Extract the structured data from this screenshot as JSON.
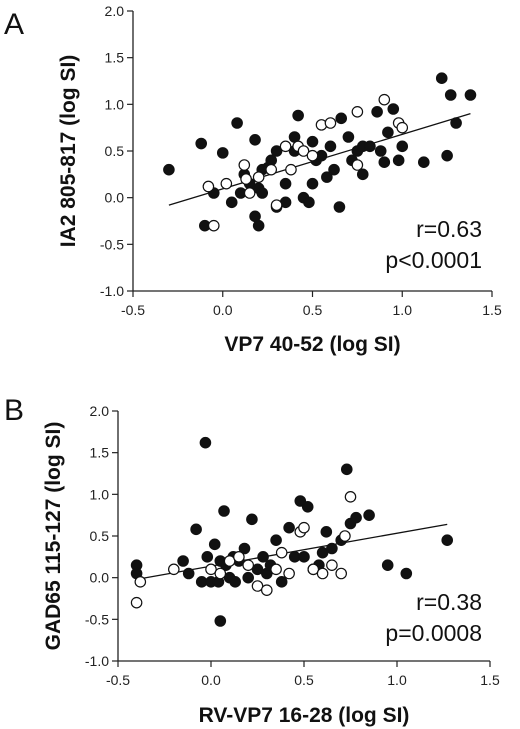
{
  "chart_data": [
    {
      "type": "scatter",
      "panel_label": "A",
      "xlabel": "VP7 40-52 (log SI)",
      "ylabel": "IA2 805-817  (log SI)",
      "xlim": [
        -0.5,
        1.5
      ],
      "ylim": [
        -1.0,
        2.0
      ],
      "x_ticks": [
        "-0.5",
        "0.0",
        "0.5",
        "1.0",
        "1.5"
      ],
      "y_ticks": [
        "-1.0",
        "-0.5",
        "0.0",
        "0.5",
        "1.0",
        "1.5",
        "2.0"
      ],
      "annotations": [
        "r=0.63",
        "p<0.0001"
      ],
      "regression_line": {
        "x": [
          -0.3,
          1.38
        ],
        "y": [
          -0.08,
          0.9
        ]
      },
      "series": [
        {
          "marker": "filled",
          "points": [
            [
              -0.3,
              0.3
            ],
            [
              -0.12,
              0.58
            ],
            [
              -0.1,
              -0.3
            ],
            [
              -0.05,
              0.05
            ],
            [
              0.0,
              0.48
            ],
            [
              0.05,
              -0.05
            ],
            [
              0.08,
              0.8
            ],
            [
              0.1,
              0.05
            ],
            [
              0.12,
              0.25
            ],
            [
              0.15,
              0.15
            ],
            [
              0.18,
              -0.2
            ],
            [
              0.18,
              0.62
            ],
            [
              0.2,
              -0.3
            ],
            [
              0.2,
              0.1
            ],
            [
              0.22,
              0.05
            ],
            [
              0.22,
              0.3
            ],
            [
              0.25,
              0.32
            ],
            [
              0.27,
              0.4
            ],
            [
              0.3,
              -0.1
            ],
            [
              0.3,
              0.5
            ],
            [
              0.35,
              0.15
            ],
            [
              0.35,
              -0.05
            ],
            [
              0.4,
              0.65
            ],
            [
              0.4,
              0.5
            ],
            [
              0.42,
              0.88
            ],
            [
              0.45,
              0.0
            ],
            [
              0.48,
              -0.05
            ],
            [
              0.5,
              0.15
            ],
            [
              0.5,
              0.6
            ],
            [
              0.52,
              0.4
            ],
            [
              0.55,
              0.45
            ],
            [
              0.58,
              0.22
            ],
            [
              0.6,
              0.55
            ],
            [
              0.62,
              0.3
            ],
            [
              0.65,
              -0.1
            ],
            [
              0.66,
              0.85
            ],
            [
              0.7,
              0.65
            ],
            [
              0.72,
              0.4
            ],
            [
              0.75,
              0.5
            ],
            [
              0.78,
              0.55
            ],
            [
              0.78,
              0.25
            ],
            [
              0.82,
              0.55
            ],
            [
              0.86,
              0.92
            ],
            [
              0.88,
              0.5
            ],
            [
              0.9,
              0.38
            ],
            [
              0.92,
              0.7
            ],
            [
              0.95,
              0.95
            ],
            [
              0.98,
              0.4
            ],
            [
              1.0,
              0.55
            ],
            [
              1.12,
              0.38
            ],
            [
              1.22,
              1.28
            ],
            [
              1.25,
              0.45
            ],
            [
              1.27,
              1.1
            ],
            [
              1.3,
              0.8
            ],
            [
              1.38,
              1.1
            ]
          ]
        },
        {
          "marker": "open",
          "points": [
            [
              -0.08,
              0.12
            ],
            [
              -0.05,
              -0.3
            ],
            [
              0.02,
              0.15
            ],
            [
              0.12,
              0.35
            ],
            [
              0.13,
              0.2
            ],
            [
              0.15,
              0.05
            ],
            [
              0.2,
              0.22
            ],
            [
              0.27,
              0.3
            ],
            [
              0.3,
              -0.08
            ],
            [
              0.35,
              0.55
            ],
            [
              0.38,
              0.3
            ],
            [
              0.42,
              0.55
            ],
            [
              0.45,
              0.5
            ],
            [
              0.5,
              0.45
            ],
            [
              0.55,
              0.78
            ],
            [
              0.6,
              0.8
            ],
            [
              0.75,
              0.92
            ],
            [
              0.75,
              0.35
            ],
            [
              0.9,
              1.05
            ],
            [
              0.98,
              0.8
            ],
            [
              1.0,
              0.75
            ]
          ]
        }
      ]
    },
    {
      "type": "scatter",
      "panel_label": "B",
      "xlabel": "RV-VP7 16-28 (log SI)",
      "ylabel": "GAD65 115-127 (log SI)",
      "xlim": [
        -0.5,
        1.5
      ],
      "ylim": [
        -1.0,
        2.0
      ],
      "x_ticks": [
        "-0.5",
        "0.0",
        "0.5",
        "1.0",
        "1.5"
      ],
      "y_ticks": [
        "-1.0",
        "-0.5",
        "0.0",
        "0.5",
        "1.0",
        "1.5",
        "2.0"
      ],
      "annotations": [
        "r=0.38",
        "p=0.0008"
      ],
      "regression_line": {
        "x": [
          -0.4,
          1.27
        ],
        "y": [
          -0.02,
          0.64
        ]
      },
      "series": [
        {
          "marker": "filled",
          "points": [
            [
              -0.4,
              0.15
            ],
            [
              -0.4,
              0.05
            ],
            [
              -0.15,
              0.2
            ],
            [
              -0.12,
              0.05
            ],
            [
              -0.08,
              0.58
            ],
            [
              -0.05,
              -0.05
            ],
            [
              -0.03,
              1.62
            ],
            [
              -0.02,
              0.25
            ],
            [
              0.0,
              -0.05
            ],
            [
              0.02,
              0.4
            ],
            [
              0.04,
              -0.05
            ],
            [
              0.05,
              -0.52
            ],
            [
              0.05,
              0.2
            ],
            [
              0.07,
              0.8
            ],
            [
              0.08,
              0.15
            ],
            [
              0.1,
              0.0
            ],
            [
              0.12,
              0.25
            ],
            [
              0.13,
              -0.05
            ],
            [
              0.15,
              0.2
            ],
            [
              0.18,
              0.35
            ],
            [
              0.2,
              0.0
            ],
            [
              0.22,
              0.7
            ],
            [
              0.25,
              0.1
            ],
            [
              0.28,
              0.25
            ],
            [
              0.3,
              0.05
            ],
            [
              0.32,
              0.15
            ],
            [
              0.35,
              0.45
            ],
            [
              0.38,
              -0.05
            ],
            [
              0.42,
              0.6
            ],
            [
              0.45,
              0.25
            ],
            [
              0.48,
              0.92
            ],
            [
              0.5,
              0.25
            ],
            [
              0.52,
              0.85
            ],
            [
              0.55,
              0.1
            ],
            [
              0.58,
              0.15
            ],
            [
              0.6,
              0.3
            ],
            [
              0.62,
              0.55
            ],
            [
              0.65,
              0.35
            ],
            [
              0.7,
              0.45
            ],
            [
              0.73,
              1.3
            ],
            [
              0.75,
              0.65
            ],
            [
              0.78,
              0.72
            ],
            [
              0.85,
              0.75
            ],
            [
              0.95,
              0.15
            ],
            [
              1.05,
              0.05
            ],
            [
              1.27,
              0.45
            ]
          ]
        },
        {
          "marker": "open",
          "points": [
            [
              -0.4,
              -0.3
            ],
            [
              -0.38,
              -0.05
            ],
            [
              -0.2,
              0.1
            ],
            [
              0.0,
              0.1
            ],
            [
              0.05,
              0.05
            ],
            [
              0.1,
              0.2
            ],
            [
              0.15,
              0.25
            ],
            [
              0.2,
              0.15
            ],
            [
              0.25,
              -0.1
            ],
            [
              0.3,
              -0.15
            ],
            [
              0.35,
              0.1
            ],
            [
              0.38,
              0.3
            ],
            [
              0.42,
              0.05
            ],
            [
              0.48,
              0.55
            ],
            [
              0.5,
              0.6
            ],
            [
              0.55,
              0.1
            ],
            [
              0.6,
              0.05
            ],
            [
              0.65,
              0.15
            ],
            [
              0.7,
              0.05
            ],
            [
              0.72,
              0.5
            ],
            [
              0.75,
              0.97
            ]
          ]
        }
      ]
    }
  ]
}
